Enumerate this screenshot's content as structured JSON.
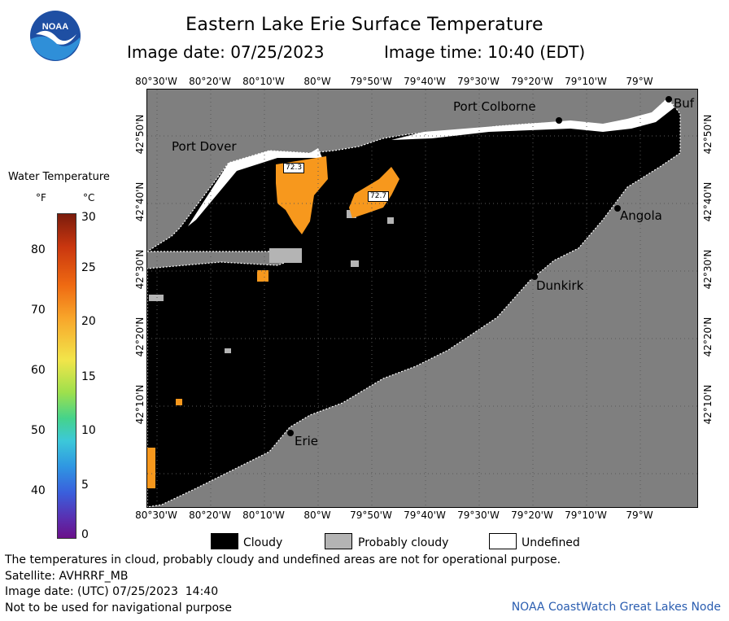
{
  "header": {
    "title": "Eastern Lake Erie Surface Temperature",
    "image_date": "Image date: 07/25/2023",
    "image_time": "Image time: 10:40 (EDT)",
    "logo_text": "NOAA"
  },
  "map": {
    "lon_ticks": [
      "80°30'W",
      "80°20'W",
      "80°10'W",
      "80°W",
      "79°50'W",
      "79°40'W",
      "79°30'W",
      "79°20'W",
      "79°10'W",
      "79°W"
    ],
    "lat_ticks": [
      "42°50'N",
      "42°40'N",
      "42°30'N",
      "42°20'N",
      "42°10'N"
    ],
    "places": {
      "port_colborne": "Port Colborne",
      "buffalo": "Buf",
      "port_dover": "Port Dover",
      "angola": "Angola",
      "dunkirk": "Dunkirk",
      "erie": "Erie"
    },
    "temperature_labels": [
      "72.3",
      "72.7"
    ],
    "colors": {
      "land": "#7f7f7f",
      "cloud": "#000000",
      "probably_cloudy": "#b4b4b4",
      "undefined": "#ffffff",
      "warm_water": "#f7981d"
    }
  },
  "legend": {
    "title": "Water Temperature",
    "unit_f": "°F",
    "unit_c": "°C",
    "f_ticks": [
      "80",
      "70",
      "60",
      "50",
      "40"
    ],
    "c_ticks": [
      "30",
      "25",
      "20",
      "15",
      "10",
      "5",
      "0"
    ],
    "range_c": [
      0,
      30
    ]
  },
  "key": {
    "cloudy": "Cloudy",
    "probably_cloudy": "Probably cloudy",
    "undefined": "Undefined"
  },
  "footer": {
    "disclaimer": "The temperatures in cloud, probably cloudy and undefined areas are not for operational purpose.",
    "satellite": "Satellite: AVHRRF_MB",
    "image_date_utc": "Image date: (UTC) 07/25/2023  14:40",
    "navigation": "Not to be used for navigational purpose",
    "credit": "NOAA CoastWatch Great Lakes Node"
  }
}
